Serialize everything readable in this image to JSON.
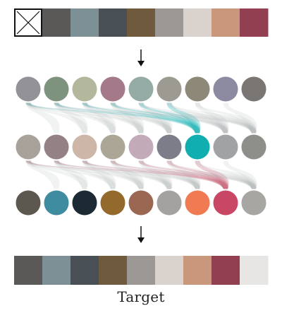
{
  "caption": "Target",
  "colors": {
    "input_palette": [
      "#5a5958",
      "#7c9095",
      "#485056",
      "#6f5a3e",
      "#9c9896",
      "#dad3cd",
      "#c9977b",
      "#923f52"
    ],
    "row1": [
      "#939298",
      "#7e937d",
      "#b3b89d",
      "#a47a8a",
      "#94aba6",
      "#9d9b91",
      "#8e8878",
      "#8c8aa0",
      "#7a7674"
    ],
    "row2": [
      "#a8a29b",
      "#938185",
      "#cdb6a8",
      "#aba696",
      "#c3aab9",
      "#7d7c89",
      "#11aeb0",
      "#a1a2a3",
      "#8e8e8a"
    ],
    "row3": [
      "#5c574f",
      "#3f8ba0",
      "#1c2a33",
      "#946a2c",
      "#9a6852",
      "#a4a2a0",
      "#f07b53",
      "#c84764",
      "#a8a6a2"
    ],
    "target_palette": [
      "#5a5958",
      "#7c9095",
      "#485056",
      "#6f5a3e",
      "#9c9896",
      "#dad3cd",
      "#c9977b",
      "#923f52",
      "#e7e6e4"
    ],
    "link_gray": "#a9adb0",
    "link_teal": "#1fb4b5",
    "link_rose": "#c6677c",
    "arrow": "#111111"
  },
  "icons": {
    "empty_swatch": "crossed-box-icon",
    "flow_arrow": "down-arrow-icon"
  }
}
